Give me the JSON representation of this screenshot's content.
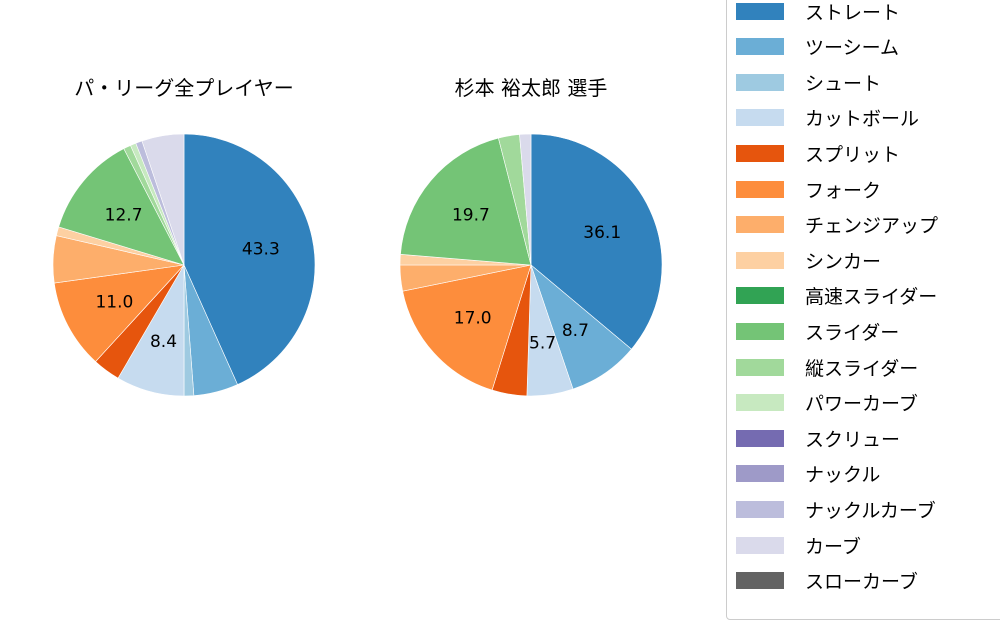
{
  "chart_data": [
    {
      "type": "pie",
      "title": "パ・リーグ全プレイヤー",
      "start_angle": 90,
      "direction": "clockwise",
      "categories": [
        "ストレート",
        "ツーシーム",
        "シュート",
        "カットボール",
        "スプリット",
        "フォーク",
        "チェンジアップ",
        "シンカー",
        "スライダー",
        "縦スライダー",
        "パワーカーブ",
        "ナックルカーブ",
        "カーブ"
      ],
      "values": [
        43.3,
        5.5,
        1.2,
        8.4,
        3.4,
        11.0,
        5.8,
        1.1,
        12.7,
        0.9,
        0.7,
        0.8,
        5.2
      ],
      "labels_shown": [
        "43.3",
        "",
        "",
        "8.4",
        "",
        "11.0",
        "",
        "",
        "12.7",
        "",
        "",
        "",
        ""
      ]
    },
    {
      "type": "pie",
      "title": "杉本 裕太郎  選手",
      "start_angle": 90,
      "direction": "clockwise",
      "categories": [
        "ストレート",
        "ツーシーム",
        "カットボール",
        "スプリット",
        "フォーク",
        "チェンジアップ",
        "シンカー",
        "スライダー",
        "縦スライダー",
        "カーブ"
      ],
      "values": [
        36.1,
        8.7,
        5.7,
        4.3,
        17.0,
        3.2,
        1.3,
        19.7,
        2.6,
        1.4
      ],
      "labels_shown": [
        "36.1",
        "8.7",
        "5.7",
        "",
        "17.0",
        "",
        "",
        "19.7",
        "",
        ""
      ]
    }
  ],
  "colors": {
    "ストレート": "#3182bd",
    "ツーシーム": "#6baed6",
    "シュート": "#9ecae1",
    "カットボール": "#c6dbef",
    "スプリット": "#e6550d",
    "フォーク": "#fd8d3c",
    "チェンジアップ": "#fdae6b",
    "シンカー": "#fdd0a2",
    "高速スライダー": "#31a354",
    "スライダー": "#74c476",
    "縦スライダー": "#a1d99b",
    "パワーカーブ": "#c7e9c0",
    "スクリュー": "#756bb1",
    "ナックル": "#9e9ac8",
    "ナックルカーブ": "#bcbddc",
    "カーブ": "#dadaeb",
    "スローカーブ": "#636363"
  },
  "legend": {
    "items": [
      "ストレート",
      "ツーシーム",
      "シュート",
      "カットボール",
      "スプリット",
      "フォーク",
      "チェンジアップ",
      "シンカー",
      "高速スライダー",
      "スライダー",
      "縦スライダー",
      "パワーカーブ",
      "スクリュー",
      "ナックル",
      "ナックルカーブ",
      "カーブ",
      "スローカーブ"
    ]
  },
  "titles": {
    "left": "パ・リーグ全プレイヤー",
    "right": "杉本 裕太郎  選手"
  }
}
